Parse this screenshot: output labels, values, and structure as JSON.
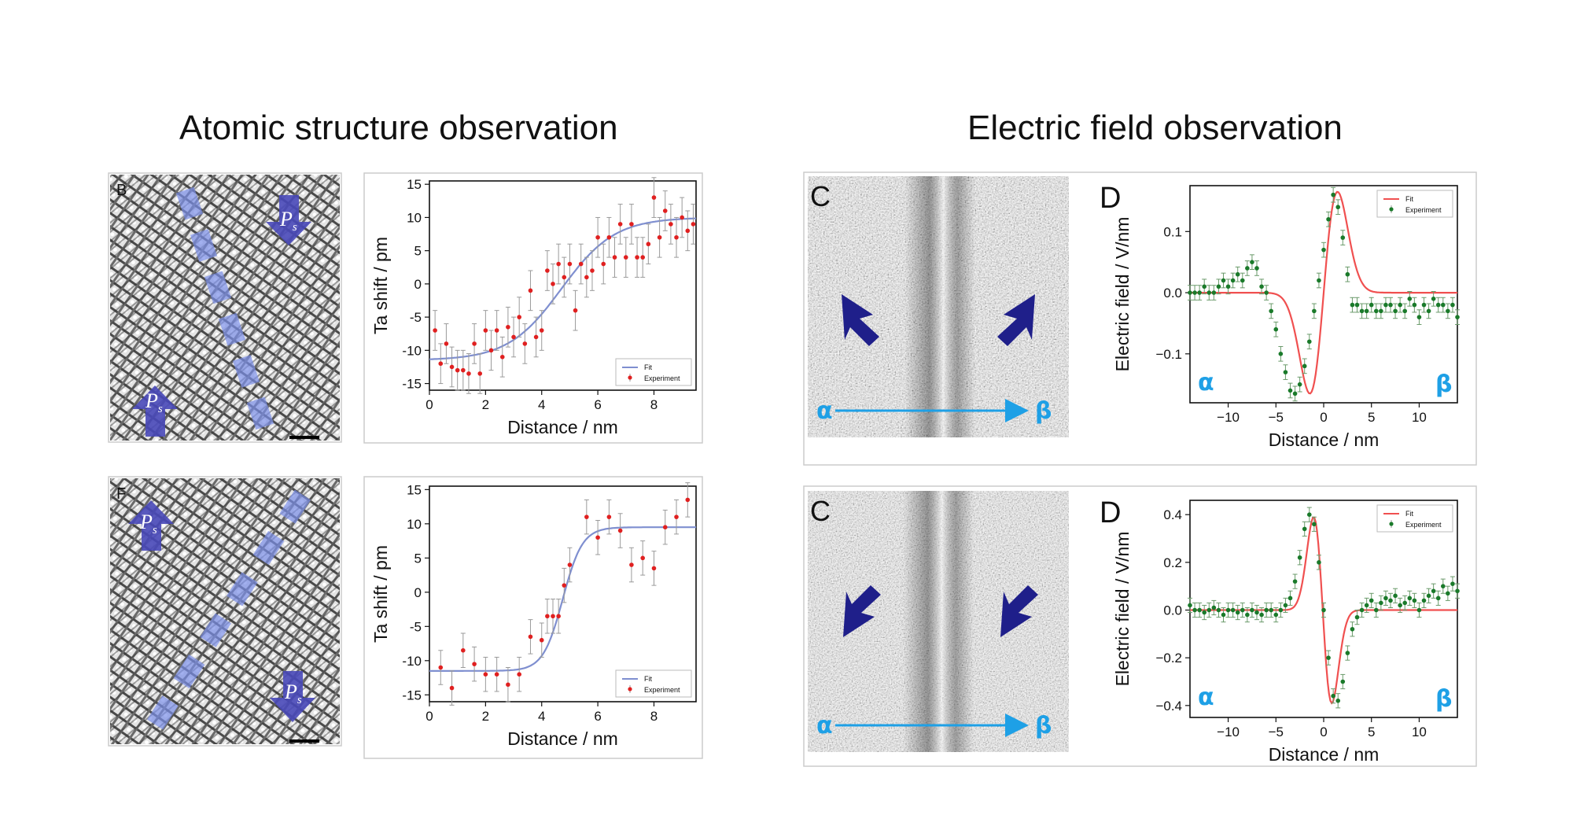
{
  "headings": {
    "left": "Atomic structure observation",
    "right": "Electric field observation"
  },
  "colors": {
    "fit_blue": "#7f8fd0",
    "fit_red": "#f05050",
    "exp_red": "#e02020",
    "exp_green": "#1a7a2a",
    "arrow_navy": "#1f1f8a",
    "arrow_lavender": "#4848b8",
    "stripe": "#7a8ee8",
    "alpha_beta": "#1ea0e6"
  },
  "images": [
    {
      "letter": "B",
      "ps_label": "P",
      "ps_sub": "s"
    },
    {
      "letter": "F",
      "ps_label": "P",
      "ps_sub": "s"
    },
    {
      "letter": "C",
      "alpha": "α",
      "beta": "β"
    },
    {
      "letter": "C",
      "alpha": "α",
      "beta": "β"
    }
  ],
  "chart_data": [
    {
      "type": "scatter",
      "panel": "",
      "xlabel": "Distance / nm",
      "ylabel": "Ta shift / pm",
      "xlim": [
        0,
        9.5
      ],
      "ylim": [
        -16,
        15.5
      ],
      "xticks": [
        0,
        2,
        4,
        6,
        8
      ],
      "yticks": [
        -15,
        -10,
        -5,
        0,
        5,
        10,
        15
      ],
      "legend": {
        "position": "bottom-right",
        "fit": "Fit",
        "experiment": "Experiment"
      },
      "fit": {
        "kind": "sigmoid",
        "low": -11.5,
        "high": 10,
        "center": 4.7,
        "width": 0.95
      },
      "series": [
        {
          "name": "Experiment",
          "x": [
            0.2,
            0.4,
            0.6,
            0.8,
            1.0,
            1.2,
            1.4,
            1.6,
            1.8,
            2.0,
            2.2,
            2.4,
            2.6,
            2.8,
            3.0,
            3.2,
            3.4,
            3.6,
            3.8,
            4.0,
            4.2,
            4.4,
            4.6,
            4.8,
            5.0,
            5.2,
            5.4,
            5.6,
            5.8,
            6.0,
            6.2,
            6.4,
            6.6,
            6.8,
            7.0,
            7.2,
            7.4,
            7.6,
            7.8,
            8.0,
            8.2,
            8.4,
            8.6,
            8.8,
            9.0,
            9.2,
            9.4
          ],
          "y": [
            -7,
            -12,
            -9,
            -12.5,
            -13,
            -13,
            -13.5,
            -9,
            -13.5,
            -7,
            -10,
            -7,
            -11,
            -6.5,
            -8,
            -5,
            -9,
            -1,
            -8,
            -7,
            2,
            0,
            3,
            1,
            3,
            -4,
            3,
            1,
            2,
            7,
            3,
            7,
            4,
            9,
            4,
            9,
            4,
            4,
            6,
            13,
            7,
            11,
            9,
            7,
            10,
            8,
            9
          ],
          "err": 3
        }
      ]
    },
    {
      "type": "scatter",
      "panel": "",
      "xlabel": "Distance / nm",
      "ylabel": "Ta shift / pm",
      "xlim": [
        0,
        9.5
      ],
      "ylim": [
        -16,
        15.5
      ],
      "xticks": [
        0,
        2,
        4,
        6,
        8
      ],
      "yticks": [
        -15,
        -10,
        -5,
        0,
        5,
        10,
        15
      ],
      "legend": {
        "position": "bottom-right",
        "fit": "Fit",
        "experiment": "Experiment"
      },
      "fit": {
        "kind": "sigmoid",
        "low": -11.5,
        "high": 9.5,
        "center": 4.75,
        "width": 0.35
      },
      "series": [
        {
          "name": "Experiment",
          "x": [
            0.4,
            0.8,
            1.2,
            1.6,
            2.0,
            2.4,
            2.8,
            3.2,
            3.6,
            4.0,
            4.2,
            4.4,
            4.6,
            4.8,
            5.0,
            5.6,
            6.0,
            6.4,
            6.8,
            7.2,
            7.6,
            8.0,
            8.4,
            8.8,
            9.2
          ],
          "y": [
            -11,
            -14,
            -8.5,
            -10.5,
            -12,
            -12,
            -13.5,
            -12,
            -6.5,
            -7,
            -3.5,
            -3.5,
            -3.5,
            1,
            4,
            11,
            8,
            11,
            9,
            4,
            5,
            3.5,
            9.5,
            11,
            13.5
          ],
          "err": 2.5
        }
      ]
    },
    {
      "type": "scatter",
      "panel": "D",
      "xlabel": "Distance / nm",
      "ylabel": "Electric field / V/nm",
      "xlim": [
        -14,
        14
      ],
      "ylim": [
        -0.18,
        0.175
      ],
      "xticks": [
        -10,
        -5,
        0,
        5,
        10
      ],
      "yticks": [
        -0.1,
        0.0,
        0.1
      ],
      "tick_labels_y": [
        "−0.1",
        "0.0",
        "0.1"
      ],
      "tick_labels_x": [
        "−10",
        "−5",
        "0",
        "5",
        "10"
      ],
      "legend": {
        "position": "top-right",
        "fit": "Fit",
        "experiment": "Experiment"
      },
      "fit": {
        "kind": "dipole",
        "amp": 0.165,
        "center": 0.0,
        "sigma": 1.45,
        "sign": 1
      },
      "left_label": "α",
      "right_label": "β",
      "series": [
        {
          "name": "Experiment",
          "x": [
            -14,
            -13.5,
            -13,
            -12.5,
            -12,
            -11.5,
            -11,
            -10.5,
            -10,
            -9.5,
            -9,
            -8.5,
            -8,
            -7.5,
            -7,
            -6.5,
            -6,
            -5.5,
            -5,
            -4.5,
            -4,
            -3.5,
            -3,
            -2.5,
            -2,
            -1.5,
            -1,
            -0.5,
            0,
            0.5,
            1,
            1.5,
            2,
            2.5,
            3,
            3.5,
            4,
            4.5,
            5,
            5.5,
            6,
            6.5,
            7,
            7.5,
            8,
            8.5,
            9,
            9.5,
            10,
            10.5,
            11,
            11.5,
            12,
            12.5,
            13,
            13.5,
            14
          ],
          "y": [
            0.0,
            0.0,
            0.0,
            0.01,
            0.0,
            0.0,
            0.01,
            0.02,
            0.01,
            0.02,
            0.03,
            0.02,
            0.04,
            0.05,
            0.04,
            0.01,
            0.0,
            -0.03,
            -0.06,
            -0.1,
            -0.13,
            -0.16,
            -0.165,
            -0.15,
            -0.12,
            -0.08,
            -0.03,
            0.02,
            0.07,
            0.12,
            0.16,
            0.14,
            0.09,
            0.03,
            -0.02,
            -0.02,
            -0.03,
            -0.03,
            -0.02,
            -0.03,
            -0.03,
            -0.02,
            -0.02,
            -0.03,
            -0.02,
            -0.03,
            -0.01,
            -0.02,
            -0.04,
            -0.02,
            -0.03,
            -0.01,
            -0.02,
            -0.02,
            -0.03,
            -0.02,
            -0.04
          ],
          "err": 0.012
        }
      ]
    },
    {
      "type": "scatter",
      "panel": "D",
      "xlabel": "Distance / nm",
      "ylabel": "Electric field / V/nm",
      "xlim": [
        -14,
        14
      ],
      "ylim": [
        -0.45,
        0.46
      ],
      "xticks": [
        -10,
        -5,
        0,
        5,
        10
      ],
      "yticks": [
        -0.4,
        -0.2,
        0.0,
        0.2,
        0.4
      ],
      "tick_labels_y": [
        "−0.4",
        "−0.2",
        "0.0",
        "0.2",
        "0.4"
      ],
      "tick_labels_x": [
        "−10",
        "−5",
        "0",
        "5",
        "10"
      ],
      "legend": {
        "position": "top-right",
        "fit": "Fit",
        "experiment": "Experiment"
      },
      "fit": {
        "kind": "dipole",
        "amp": 0.39,
        "center": -0.1,
        "sigma": 0.95,
        "sign": -1
      },
      "left_label": "α",
      "right_label": "β",
      "series": [
        {
          "name": "Experiment",
          "x": [
            -14,
            -13.5,
            -13,
            -12.5,
            -12,
            -11.5,
            -11,
            -10.5,
            -10,
            -9.5,
            -9,
            -8.5,
            -8,
            -7.5,
            -7,
            -6.5,
            -6,
            -5.5,
            -5,
            -4.5,
            -4,
            -3.5,
            -3,
            -2.5,
            -2,
            -1.5,
            -1,
            -0.5,
            0,
            0.5,
            1,
            1.5,
            2,
            2.5,
            3,
            3.5,
            4,
            4.5,
            5,
            5.5,
            6,
            6.5,
            7,
            7.5,
            8,
            8.5,
            9,
            9.5,
            10,
            10.5,
            11,
            11.5,
            12,
            12.5,
            13,
            13.5,
            14
          ],
          "y": [
            0.02,
            0.0,
            0.0,
            -0.01,
            0.0,
            0.01,
            0.0,
            -0.02,
            0.0,
            0.0,
            -0.01,
            0.0,
            -0.02,
            0.0,
            -0.01,
            -0.02,
            0.0,
            0.0,
            -0.02,
            0.0,
            0.02,
            0.05,
            0.12,
            0.22,
            0.34,
            0.4,
            0.36,
            0.2,
            0.0,
            -0.2,
            -0.36,
            -0.38,
            -0.3,
            -0.18,
            -0.08,
            -0.03,
            0.0,
            0.02,
            0.04,
            0.0,
            0.03,
            0.05,
            0.04,
            0.06,
            0.02,
            0.03,
            0.05,
            0.04,
            0.0,
            0.04,
            0.06,
            0.08,
            0.05,
            0.1,
            0.07,
            0.11,
            0.08
          ],
          "err": 0.03
        }
      ]
    }
  ]
}
